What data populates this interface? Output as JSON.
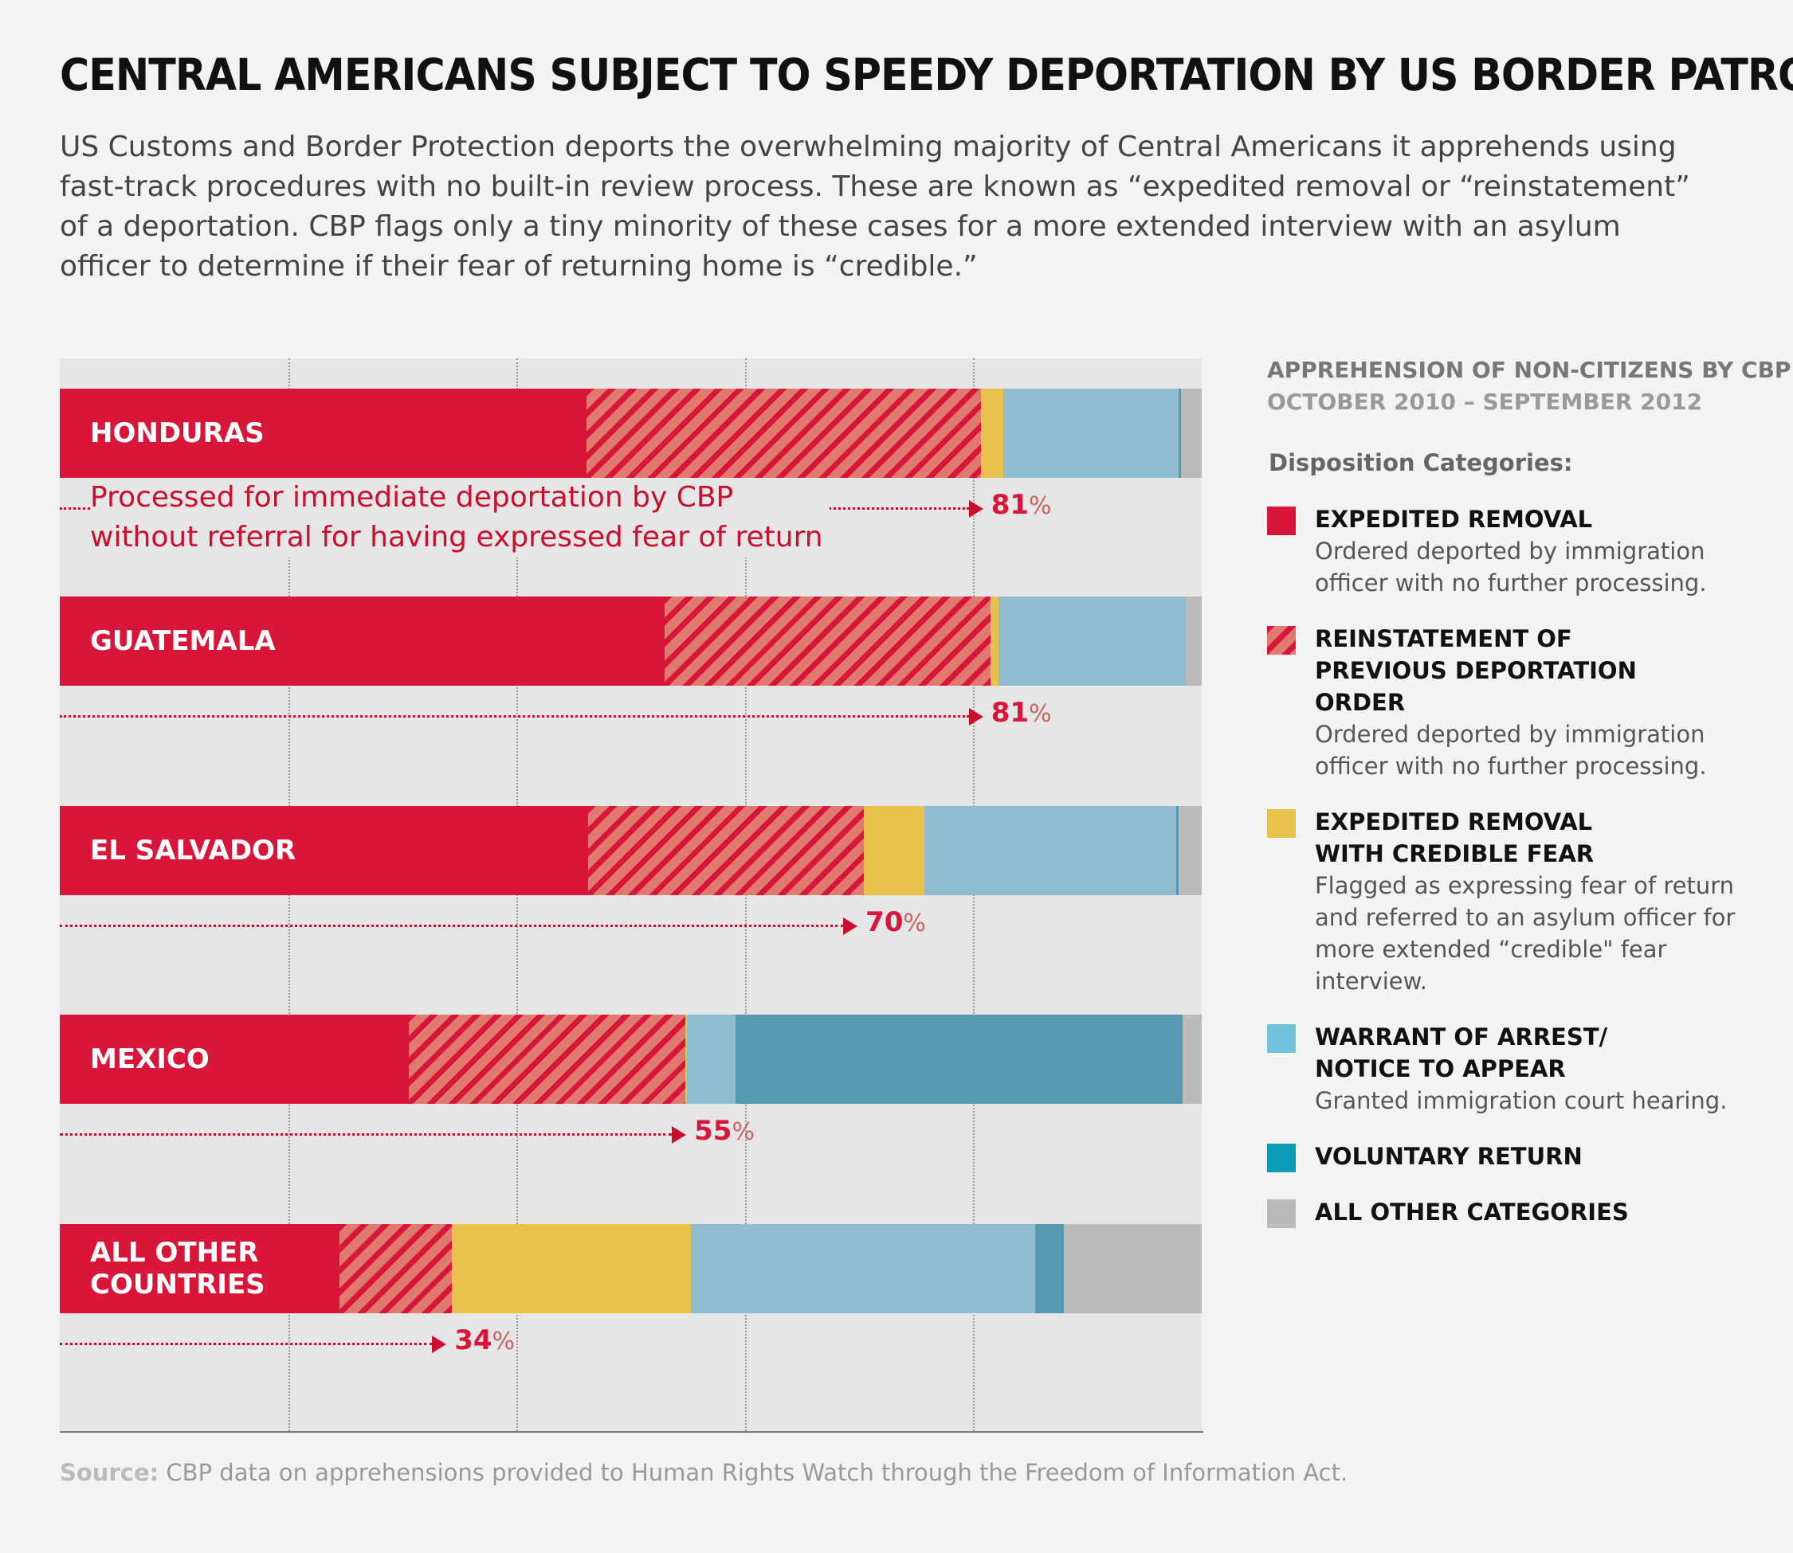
{
  "title": "CENTRAL AMERICANS SUBJECT TO SPEEDY DEPORTATION BY US BORDER PATROL",
  "subtitle": "US Customs and Border Protection deports the overwhelming majority of Central Americans it apprehends using fast-track procedures with no built-in review process.  These are known as “expedited removal or “reinstatement” of a deportation.  CBP flags only a tiny minority of these cases for a more extended interview with an asylum officer to determine if their fear of returning home is “credible.”",
  "annotation": "Processed for immediate deportation by CBP without referral for having expressed fear of return",
  "legend": {
    "heading": "APPREHENSION OF NON-CITIZENS BY CBP",
    "period": "OCTOBER 2010 – SEPTEMBER 2012",
    "categories_label": "Disposition Categories:",
    "items": [
      {
        "name": "EXPEDITED REMOVAL",
        "desc": "Ordered deported by immigration officer with no further processing.",
        "color": "#d7163a"
      },
      {
        "name": "REINSTATEMENT OF PREVIOUS DEPORTATION ORDER",
        "desc": "Ordered deported by immigration officer with no further processing.",
        "color": "hatch"
      },
      {
        "name": "EXPEDITED REMOVAL WITH CREDIBLE FEAR",
        "desc": "Flagged as expressing fear of return and referred to an asylum officer for more extended “credible\" fear interview.",
        "color": "#e8c04a"
      },
      {
        "name": "WARRANT OF ARREST/ NOTICE TO APPEAR",
        "desc": "Granted immigration court hearing.",
        "color": "#72c2dc"
      },
      {
        "name": "VOLUNTARY RETURN",
        "desc": "",
        "color": "#0a9bb8"
      },
      {
        "name": "ALL OTHER CATEGORIES",
        "desc": "",
        "color": "#bbbab8"
      }
    ]
  },
  "source": {
    "label": "Source:",
    "text": " CBP data on apprehensions provided to Human Rights Watch through the Freedom of Information Act."
  },
  "chart_data": {
    "type": "bar",
    "orientation": "horizontal-stacked-100",
    "categories": [
      "HONDURAS",
      "GUATEMALA",
      "EL SALVADOR",
      "MEXICO",
      "ALL OTHER COUNTRIES"
    ],
    "series": [
      {
        "name": "EXPEDITED REMOVAL",
        "color": "#d7163a",
        "values": [
          46.1,
          53.0,
          46.3,
          30.6,
          24.5
        ]
      },
      {
        "name": "REINSTATEMENT OF PREVIOUS DEPORTATION ORDER",
        "color": "hatch",
        "values": [
          34.6,
          28.5,
          24.1,
          24.2,
          9.8
        ]
      },
      {
        "name": "EXPEDITED REMOVAL WITH CREDIBLE FEAR",
        "color": "#e8c04a",
        "values": [
          1.9,
          0.7,
          5.3,
          0.1,
          21.0
        ]
      },
      {
        "name": "WARRANT OF ARREST/ NOTICE TO APPEAR",
        "color": "#8fbccf",
        "values": [
          15.4,
          16.4,
          22.1,
          4.3,
          30.1
        ]
      },
      {
        "name": "VOLUNTARY RETURN",
        "color": "#5699b0",
        "values": [
          0.2,
          0.0,
          0.2,
          39.1,
          2.5
        ]
      },
      {
        "name": "ALL OTHER CATEGORIES",
        "color": "#bbbab8",
        "values": [
          1.8,
          1.4,
          2.0,
          1.7,
          12.1
        ]
      }
    ],
    "fast_track_totals": [
      "81",
      "81",
      "70",
      "55",
      "34"
    ],
    "percent_sign": "%",
    "xlim": [
      0,
      100
    ],
    "gridlines": [
      20,
      40,
      60,
      80
    ],
    "grid": true,
    "legend": "right"
  }
}
